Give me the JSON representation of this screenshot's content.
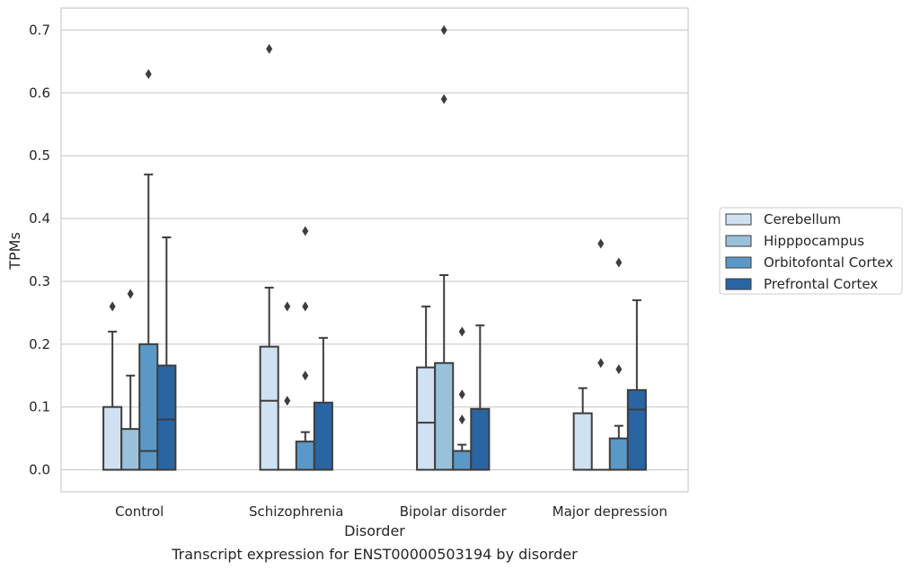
{
  "caption": "Transcript expression for ENST00000503194 by disorder",
  "chart_data": {
    "type": "box",
    "title": "",
    "xlabel": "Disorder",
    "ylabel": "TPMs",
    "ylim": [
      -0.035,
      0.735
    ],
    "yticks": [
      "0.0",
      "0.1",
      "0.2",
      "0.3",
      "0.4",
      "0.5",
      "0.6",
      "0.7"
    ],
    "grid": "horizontal",
    "legend_position": "right",
    "categories": [
      "Control",
      "Schizophrenia",
      "Bipolar disorder",
      "Major depression"
    ],
    "series": [
      {
        "name": "Cerebellum",
        "color": "#d0e1f2",
        "boxes": [
          {
            "q1": 0.0,
            "median": 0.0,
            "q3": 0.1,
            "whisker_low": 0.0,
            "whisker_high": 0.22,
            "outliers": [
              0.26
            ]
          },
          {
            "q1": 0.0,
            "median": 0.11,
            "q3": 0.196,
            "whisker_low": 0.0,
            "whisker_high": 0.29,
            "outliers": [
              0.67
            ]
          },
          {
            "q1": 0.0,
            "median": 0.075,
            "q3": 0.163,
            "whisker_low": 0.0,
            "whisker_high": 0.26,
            "outliers": []
          },
          {
            "q1": 0.0,
            "median": 0.0,
            "q3": 0.09,
            "whisker_low": 0.0,
            "whisker_high": 0.13,
            "outliers": []
          }
        ]
      },
      {
        "name": "Hipppocampus",
        "color": "#9ac1dc",
        "boxes": [
          {
            "q1": 0.0,
            "median": 0.0,
            "q3": 0.065,
            "whisker_low": 0.0,
            "whisker_high": 0.15,
            "outliers": [
              0.28
            ]
          },
          {
            "q1": 0.0,
            "median": 0.0,
            "q3": 0.0,
            "whisker_low": 0.0,
            "whisker_high": 0.0,
            "outliers": [
              0.11,
              0.26
            ]
          },
          {
            "q1": 0.0,
            "median": 0.0,
            "q3": 0.17,
            "whisker_low": 0.0,
            "whisker_high": 0.31,
            "outliers": [
              0.59,
              0.7
            ]
          },
          {
            "q1": 0.0,
            "median": 0.0,
            "q3": 0.0,
            "whisker_low": 0.0,
            "whisker_high": 0.0,
            "outliers": [
              0.17,
              0.36
            ]
          }
        ]
      },
      {
        "name": "Orbitofontal Cortex",
        "color": "#5a99c7",
        "boxes": [
          {
            "q1": 0.0,
            "median": 0.03,
            "q3": 0.2,
            "whisker_low": 0.0,
            "whisker_high": 0.47,
            "outliers": [
              0.63
            ]
          },
          {
            "q1": 0.0,
            "median": 0.0,
            "q3": 0.045,
            "whisker_low": 0.0,
            "whisker_high": 0.06,
            "outliers": [
              0.15,
              0.26,
              0.38
            ]
          },
          {
            "q1": 0.0,
            "median": 0.0,
            "q3": 0.03,
            "whisker_low": 0.0,
            "whisker_high": 0.04,
            "outliers": [
              0.08,
              0.12,
              0.22
            ]
          },
          {
            "q1": 0.0,
            "median": 0.0,
            "q3": 0.05,
            "whisker_low": 0.0,
            "whisker_high": 0.07,
            "outliers": [
              0.16,
              0.33
            ]
          }
        ]
      },
      {
        "name": "Prefrontal Cortex",
        "color": "#2a65a3",
        "boxes": [
          {
            "q1": 0.0,
            "median": 0.08,
            "q3": 0.166,
            "whisker_low": 0.0,
            "whisker_high": 0.37,
            "outliers": []
          },
          {
            "q1": 0.0,
            "median": 0.0,
            "q3": 0.107,
            "whisker_low": 0.0,
            "whisker_high": 0.21,
            "outliers": []
          },
          {
            "q1": 0.0,
            "median": 0.0,
            "q3": 0.097,
            "whisker_low": 0.0,
            "whisker_high": 0.23,
            "outliers": []
          },
          {
            "q1": 0.0,
            "median": 0.096,
            "q3": 0.127,
            "whisker_low": 0.0,
            "whisker_high": 0.27,
            "outliers": []
          }
        ]
      }
    ]
  }
}
